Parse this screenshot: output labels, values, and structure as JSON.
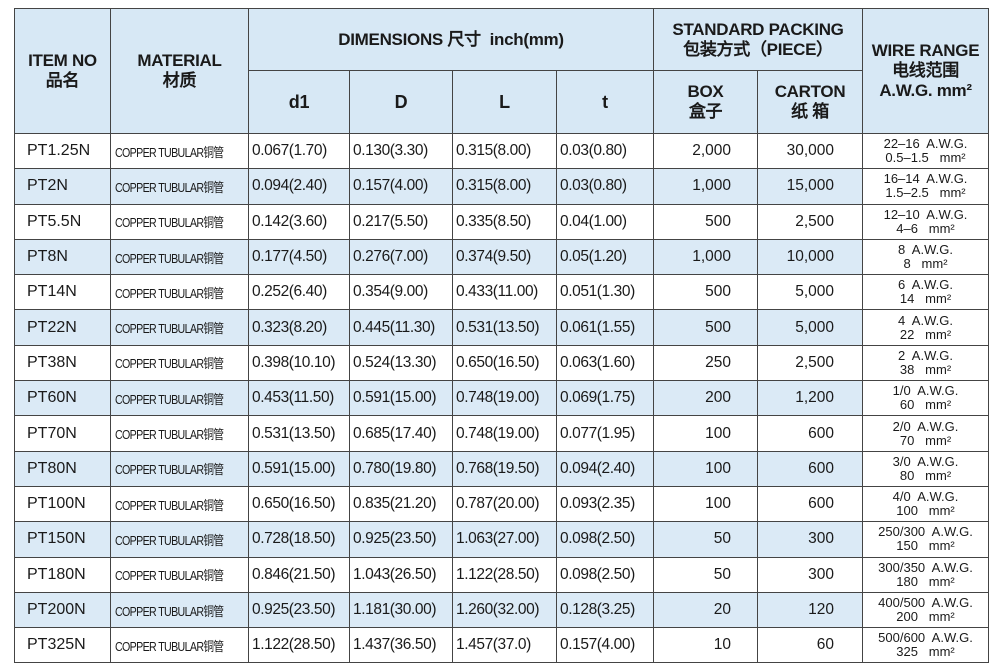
{
  "header": {
    "item_no": "ITEM NO",
    "item_no_cn": "品名",
    "material": "MATERIAL",
    "material_cn": "材质",
    "dimensions": "DIMENSIONS 尺寸  inch(mm)",
    "packing": "STANDARD PACKING",
    "packing_cn": "包装方式（PIECE）",
    "wire_range": "WIRE RANGE",
    "wire_range_cn": "电线范围",
    "wire_range_unit": "A.W.G. mm²",
    "d1": "d1",
    "D": "D",
    "L": "L",
    "t": "t",
    "box": "BOX",
    "box_cn": "盒子",
    "carton": "CARTON",
    "carton_cn": "纸 箱"
  },
  "rows": [
    {
      "item": "PT1.25N",
      "material": "COPPER TUBULAR铜管",
      "d1": "0.067(1.70)",
      "D": "0.130(3.30)",
      "L": "0.315(8.00)",
      "t": "0.03(0.80)",
      "box": "2,000",
      "carton": "30,000",
      "awg": "22–16  A.W.G.",
      "mm2": "0.5–1.5   mm²"
    },
    {
      "item": "PT2N",
      "material": "COPPER TUBULAR铜管",
      "d1": "0.094(2.40)",
      "D": "0.157(4.00)",
      "L": "0.315(8.00)",
      "t": "0.03(0.80)",
      "box": "1,000",
      "carton": "15,000",
      "awg": "16–14  A.W.G.",
      "mm2": "1.5–2.5   mm²"
    },
    {
      "item": "PT5.5N",
      "material": "COPPER TUBULAR铜管",
      "d1": "0.142(3.60)",
      "D": "0.217(5.50)",
      "L": "0.335(8.50)",
      "t": "0.04(1.00)",
      "box": "500",
      "carton": "2,500",
      "awg": "12–10  A.W.G.",
      "mm2": "4–6   mm²"
    },
    {
      "item": "PT8N",
      "material": "COPPER TUBULAR铜管",
      "d1": "0.177(4.50)",
      "D": "0.276(7.00)",
      "L": "0.374(9.50)",
      "t": "0.05(1.20)",
      "box": "1,000",
      "carton": "10,000",
      "awg": "8  A.W.G.",
      "mm2": "8   mm²"
    },
    {
      "item": "PT14N",
      "material": "COPPER TUBULAR铜管",
      "d1": "0.252(6.40)",
      "D": "0.354(9.00)",
      "L": "0.433(11.00)",
      "t": "0.051(1.30)",
      "box": "500",
      "carton": "5,000",
      "awg": "6  A.W.G.",
      "mm2": "14   mm²"
    },
    {
      "item": "PT22N",
      "material": "COPPER TUBULAR铜管",
      "d1": "0.323(8.20)",
      "D": "0.445(11.30)",
      "L": "0.531(13.50)",
      "t": "0.061(1.55)",
      "box": "500",
      "carton": "5,000",
      "awg": "4  A.W.G.",
      "mm2": "22   mm²"
    },
    {
      "item": "PT38N",
      "material": "COPPER TUBULAR铜管",
      "d1": "0.398(10.10)",
      "D": "0.524(13.30)",
      "L": "0.650(16.50)",
      "t": "0.063(1.60)",
      "box": "250",
      "carton": "2,500",
      "awg": "2  A.W.G.",
      "mm2": "38   mm²"
    },
    {
      "item": "PT60N",
      "material": "COPPER TUBULAR铜管",
      "d1": "0.453(11.50)",
      "D": "0.591(15.00)",
      "L": "0.748(19.00)",
      "t": "0.069(1.75)",
      "box": "200",
      "carton": "1,200",
      "awg": "1/0  A.W.G.",
      "mm2": "60   mm²"
    },
    {
      "item": "PT70N",
      "material": "COPPER TUBULAR铜管",
      "d1": "0.531(13.50)",
      "D": "0.685(17.40)",
      "L": "0.748(19.00)",
      "t": "0.077(1.95)",
      "box": "100",
      "carton": "600",
      "awg": "2/0  A.W.G.",
      "mm2": "70   mm²"
    },
    {
      "item": "PT80N",
      "material": "COPPER TUBULAR铜管",
      "d1": "0.591(15.00)",
      "D": "0.780(19.80)",
      "L": "0.768(19.50)",
      "t": "0.094(2.40)",
      "box": "100",
      "carton": "600",
      "awg": "3/0  A.W.G.",
      "mm2": "80   mm²"
    },
    {
      "item": "PT100N",
      "material": "COPPER TUBULAR铜管",
      "d1": "0.650(16.50)",
      "D": "0.835(21.20)",
      "L": "0.787(20.00)",
      "t": "0.093(2.35)",
      "box": "100",
      "carton": "600",
      "awg": "4/0  A.W.G.",
      "mm2": "100   mm²"
    },
    {
      "item": "PT150N",
      "material": "COPPER TUBULAR铜管",
      "d1": "0.728(18.50)",
      "D": "0.925(23.50)",
      "L": "1.063(27.00)",
      "t": "0.098(2.50)",
      "box": "50",
      "carton": "300",
      "awg": "250/300  A.W.G.",
      "mm2": "150   mm²"
    },
    {
      "item": "PT180N",
      "material": "COPPER TUBULAR铜管",
      "d1": "0.846(21.50)",
      "D": "1.043(26.50)",
      "L": "1.122(28.50)",
      "t": "0.098(2.50)",
      "box": "50",
      "carton": "300",
      "awg": "300/350  A.W.G.",
      "mm2": "180   mm²"
    },
    {
      "item": "PT200N",
      "material": "COPPER TUBULAR铜管",
      "d1": "0.925(23.50)",
      "D": "1.181(30.00)",
      "L": "1.260(32.00)",
      "t": "0.128(3.25)",
      "box": "20",
      "carton": "120",
      "awg": "400/500  A.W.G.",
      "mm2": "200   mm²"
    },
    {
      "item": "PT325N",
      "material": "COPPER TUBULAR铜管",
      "d1": "1.122(28.50)",
      "D": "1.437(36.50)",
      "L": "1.457(37.0)",
      "t": "0.157(4.00)",
      "box": "10",
      "carton": "60",
      "awg": "500/600  A.W.G.",
      "mm2": "325   mm²"
    }
  ],
  "colors": {
    "header_bg": "#d7e8f5",
    "alt_row_bg": "#dbeaf6",
    "border": "#444444"
  }
}
